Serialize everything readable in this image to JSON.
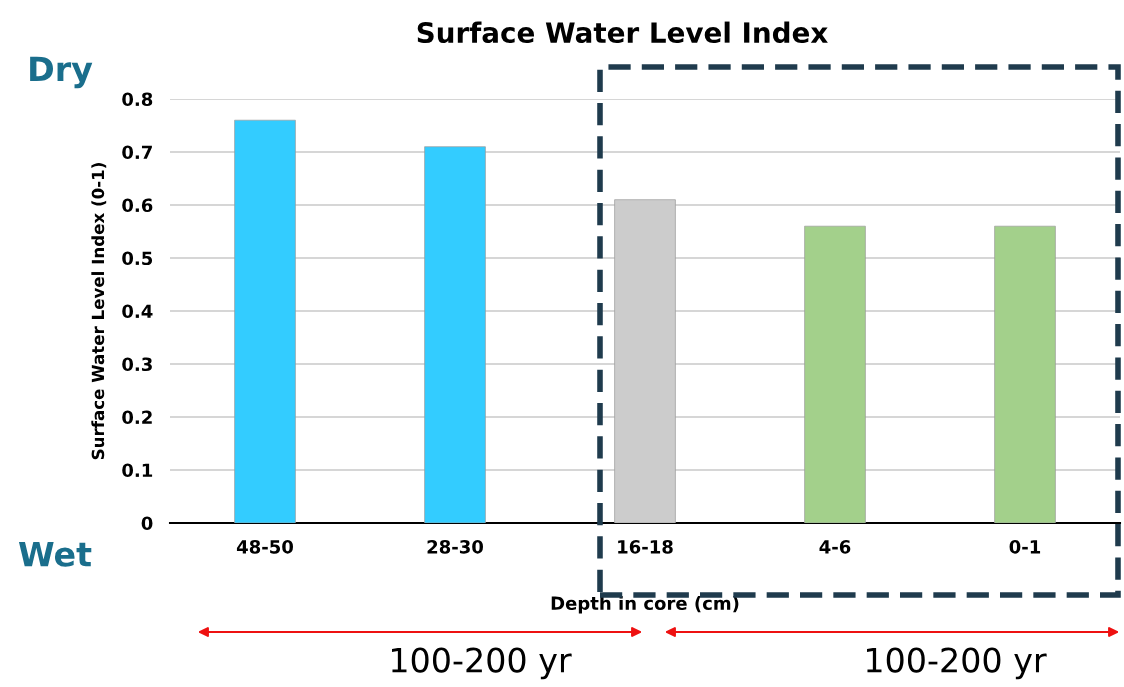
{
  "chart_data": {
    "type": "bar",
    "title": "Surface Water Level Index",
    "xlabel": "Depth in core (cm)",
    "ylabel": "Surface Water Level Index (0-1)",
    "categories": [
      "48-50",
      "28-30",
      "16-18",
      "4-6",
      "0-1"
    ],
    "values": [
      0.76,
      0.71,
      0.61,
      0.56,
      0.56
    ],
    "colors": [
      "#33ccff",
      "#33ccff",
      "#cccccc",
      "#a3d08b",
      "#a3d08b"
    ],
    "ylim": [
      0,
      0.8
    ],
    "yticks": [
      {
        "value": 0,
        "label": "0"
      },
      0.1,
      0.2,
      0.3,
      0.4,
      0.5,
      0.6,
      0.7,
      0.8
    ],
    "grid": "y",
    "annotations": [
      "Dry",
      "Wet",
      "100-200 yr",
      "100-200 yr"
    ]
  }
}
